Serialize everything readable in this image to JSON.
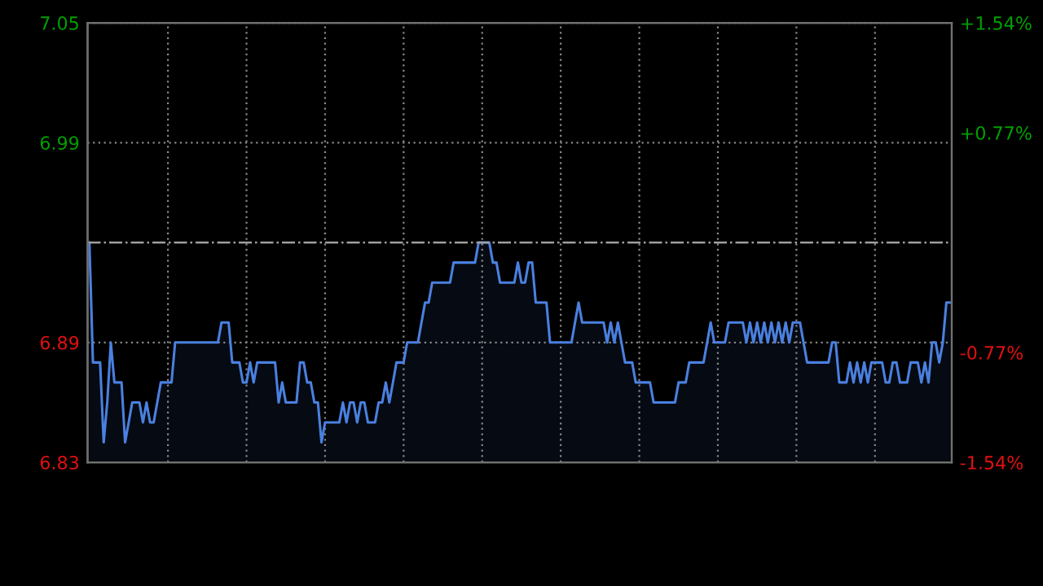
{
  "chart_data": {
    "type": "area",
    "categories": [
      null,
      null,
      null,
      null,
      null,
      null,
      null,
      null,
      null,
      null,
      null,
      null,
      null,
      null,
      null,
      null,
      null,
      null,
      null,
      null,
      null,
      null,
      null,
      null,
      null,
      null,
      null,
      null,
      null,
      null,
      null,
      null,
      null,
      null,
      null,
      null,
      null,
      null,
      null,
      null,
      null,
      null,
      null,
      null,
      null,
      null,
      null,
      null,
      null,
      null,
      null,
      null,
      null,
      null,
      null,
      null,
      null,
      null,
      null,
      null,
      null,
      null,
      null,
      null,
      null,
      null,
      null,
      null,
      null,
      null,
      null,
      null,
      null,
      null,
      null,
      null,
      null,
      null,
      null,
      null,
      null,
      null,
      null,
      null,
      null,
      null,
      null,
      null,
      null,
      null,
      null,
      null,
      null,
      null,
      null,
      null,
      null,
      null,
      null,
      null,
      null,
      null,
      null,
      null,
      null,
      null,
      null,
      null,
      null,
      null,
      null,
      null,
      null,
      null,
      null,
      null,
      null,
      null,
      null,
      null,
      null,
      null,
      null,
      null,
      null,
      null,
      null,
      null,
      null,
      null,
      null,
      null,
      null,
      null,
      null,
      null,
      null,
      null,
      null,
      null,
      null,
      null,
      null,
      null,
      null,
      null,
      null,
      null,
      null,
      null,
      null,
      null,
      null,
      null,
      null,
      null,
      null,
      null,
      null,
      null,
      null,
      null,
      null,
      null,
      null,
      null,
      null,
      null,
      null,
      null,
      null,
      null,
      null,
      null,
      null,
      null,
      null,
      null,
      null,
      null,
      null,
      null,
      null,
      null,
      null,
      null,
      null,
      null,
      null,
      null,
      null,
      null,
      null,
      null,
      null,
      null,
      null,
      null,
      null,
      null,
      null,
      null,
      null,
      null,
      null,
      null,
      null,
      null,
      null,
      null,
      null,
      null,
      null,
      null,
      null,
      null,
      null,
      null,
      null,
      null,
      null,
      null,
      null,
      null,
      null,
      null,
      null,
      null,
      null,
      null,
      null,
      null,
      null,
      null,
      null,
      null,
      null,
      null,
      null,
      null,
      null,
      null
    ],
    "series": [
      {
        "color": "#4a80e0",
        "values": [
          6.94,
          6.88,
          6.88,
          6.88,
          6.84,
          6.86,
          6.89,
          6.87,
          6.87,
          6.87,
          6.84,
          6.85,
          6.86,
          6.86,
          6.86,
          6.85,
          6.86,
          6.85,
          6.85,
          6.86,
          6.87,
          6.87,
          6.87,
          6.87,
          6.89,
          6.89,
          6.89,
          6.89,
          6.89,
          6.89,
          6.89,
          6.89,
          6.89,
          6.89,
          6.89,
          6.89,
          6.89,
          6.9,
          6.9,
          6.9,
          6.88,
          6.88,
          6.88,
          6.87,
          6.87,
          6.88,
          6.87,
          6.88,
          6.88,
          6.88,
          6.88,
          6.88,
          6.88,
          6.86,
          6.87,
          6.86,
          6.86,
          6.86,
          6.86,
          6.88,
          6.88,
          6.87,
          6.87,
          6.86,
          6.86,
          6.84,
          6.85,
          6.85,
          6.85,
          6.85,
          6.85,
          6.86,
          6.85,
          6.86,
          6.86,
          6.85,
          6.86,
          6.86,
          6.85,
          6.85,
          6.85,
          6.86,
          6.86,
          6.87,
          6.86,
          6.87,
          6.88,
          6.88,
          6.88,
          6.89,
          6.89,
          6.89,
          6.89,
          6.9,
          6.91,
          6.91,
          6.92,
          6.92,
          6.92,
          6.92,
          6.92,
          6.92,
          6.93,
          6.93,
          6.93,
          6.93,
          6.93,
          6.93,
          6.93,
          6.94,
          6.94,
          6.94,
          6.94,
          6.93,
          6.93,
          6.92,
          6.92,
          6.92,
          6.92,
          6.92,
          6.93,
          6.92,
          6.92,
          6.93,
          6.93,
          6.91,
          6.91,
          6.91,
          6.91,
          6.89,
          6.89,
          6.89,
          6.89,
          6.89,
          6.89,
          6.89,
          6.9,
          6.91,
          6.9,
          6.9,
          6.9,
          6.9,
          6.9,
          6.9,
          6.9,
          6.89,
          6.9,
          6.89,
          6.9,
          6.89,
          6.88,
          6.88,
          6.88,
          6.87,
          6.87,
          6.87,
          6.87,
          6.87,
          6.86,
          6.86,
          6.86,
          6.86,
          6.86,
          6.86,
          6.86,
          6.87,
          6.87,
          6.87,
          6.88,
          6.88,
          6.88,
          6.88,
          6.88,
          6.89,
          6.9,
          6.89,
          6.89,
          6.89,
          6.89,
          6.9,
          6.9,
          6.9,
          6.9,
          6.9,
          6.89,
          6.9,
          6.89,
          6.9,
          6.89,
          6.9,
          6.89,
          6.9,
          6.89,
          6.9,
          6.89,
          6.9,
          6.89,
          6.9,
          6.9,
          6.9,
          6.89,
          6.88,
          6.88,
          6.88,
          6.88,
          6.88,
          6.88,
          6.88,
          6.89,
          6.89,
          6.87,
          6.87,
          6.87,
          6.88,
          6.87,
          6.88,
          6.87,
          6.88,
          6.87,
          6.88,
          6.88,
          6.88,
          6.88,
          6.87,
          6.87,
          6.88,
          6.88,
          6.87,
          6.87,
          6.87,
          6.88,
          6.88,
          6.88,
          6.87,
          6.88,
          6.87,
          6.89,
          6.89,
          6.88,
          6.89,
          6.91,
          6.91
        ]
      }
    ],
    "ylim": [
      6.83,
      7.05
    ],
    "yticks": [
      6.83,
      6.89,
      6.99,
      7.05
    ],
    "y2lim": [
      -1.54,
      1.54
    ],
    "y2ticks": [
      {
        "value": -1.54,
        "label": "-1.54%"
      },
      {
        "value": -0.77,
        "label": "-0.77%"
      },
      {
        "value": 0.77,
        "label": "+0.77%"
      },
      {
        "value": 1.54,
        "label": "+1.54%"
      }
    ],
    "ref_lines": [
      {
        "axis": "y",
        "value": 6.94,
        "label": null,
        "color": "#a0a0a0",
        "line_style": "dashdot"
      }
    ],
    "grid": true,
    "legend": false
  }
}
